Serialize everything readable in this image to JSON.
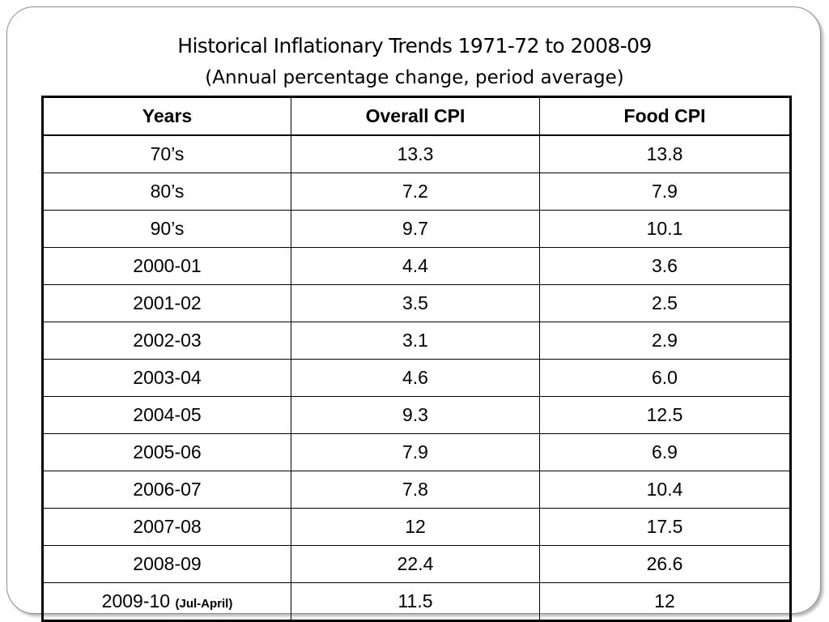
{
  "slide": {
    "title": "Historical Inflationary Trends 1971-72 to 2008-09",
    "subtitle": "(Annual percentage change, period average)"
  },
  "table": {
    "headers": [
      "Years",
      "Overall CPI",
      "Food CPI"
    ],
    "rows": [
      {
        "year": "70’s",
        "overall": "13.3",
        "food": "13.8"
      },
      {
        "year": "80’s",
        "overall": "7.2",
        "food": "7.9"
      },
      {
        "year": "90’s",
        "overall": "9.7",
        "food": "10.1"
      },
      {
        "year": "2000-01",
        "overall": "4.4",
        "food": "3.6"
      },
      {
        "year": "2001-02",
        "overall": "3.5",
        "food": "2.5"
      },
      {
        "year": "2002-03",
        "overall": "3.1",
        "food": "2.9"
      },
      {
        "year": "2003-04",
        "overall": "4.6",
        "food": "6.0"
      },
      {
        "year": "2004-05",
        "overall": "9.3",
        "food": "12.5"
      },
      {
        "year": "2005-06",
        "overall": "7.9",
        "food": "6.9"
      },
      {
        "year": "2006-07",
        "overall": "7.8",
        "food": "10.4"
      },
      {
        "year": "2007-08",
        "overall": "12",
        "food": "17.5"
      },
      {
        "year": "2008-09",
        "overall": "22.4",
        "food": "26.6"
      },
      {
        "year": "2009-10",
        "year_note": "(Jul-April)",
        "overall": "11.5",
        "food": "12"
      }
    ]
  }
}
